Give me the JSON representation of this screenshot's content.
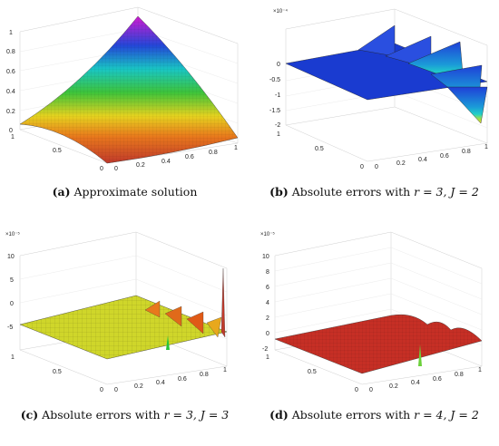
{
  "panels": {
    "a": {
      "letter": "(a)",
      "caption_text": " Approximate solution",
      "math": "",
      "exponent": "",
      "zticks": [
        "1",
        "0.8",
        "0.6",
        "0.4",
        "0.2",
        "0"
      ],
      "xticks": [
        "0",
        "0.2",
        "0.4",
        "0.6",
        "0.8",
        "1"
      ],
      "yticks": [
        "1",
        "0.5",
        "0"
      ]
    },
    "b": {
      "letter": "(b)",
      "caption_text": " Absolute errors with ",
      "math": "r = 3, J = 2",
      "exponent": "×10⁻⁴",
      "zticks": [
        "0",
        "-0.5",
        "-1",
        "-1.5",
        "-2"
      ],
      "xticks": [
        "0",
        "0.2",
        "0.4",
        "0.6",
        "0.8",
        "1"
      ],
      "yticks": [
        "1",
        "0.5",
        "0"
      ]
    },
    "c": {
      "letter": "(c)",
      "caption_text": " Absolute errors with ",
      "math": "r = 3, J = 3",
      "exponent": "×10⁻⁵",
      "zticks": [
        "10",
        "5",
        "0",
        "-5"
      ],
      "xticks": [
        "0",
        "0.2",
        "0.4",
        "0.6",
        "0.8",
        "1"
      ],
      "yticks": [
        "1",
        "0.5",
        "0"
      ]
    },
    "d": {
      "letter": "(d)",
      "caption_text": " Absolute errors with ",
      "math": "r = 4, J = 2",
      "exponent": "×10⁻⁵",
      "zticks": [
        "10",
        "8",
        "6",
        "4",
        "2",
        "0",
        "-2"
      ],
      "xticks": [
        "0",
        "0.2",
        "0.4",
        "0.6",
        "0.8",
        "1"
      ],
      "yticks": [
        "1",
        "0.5",
        "0"
      ]
    }
  }
}
